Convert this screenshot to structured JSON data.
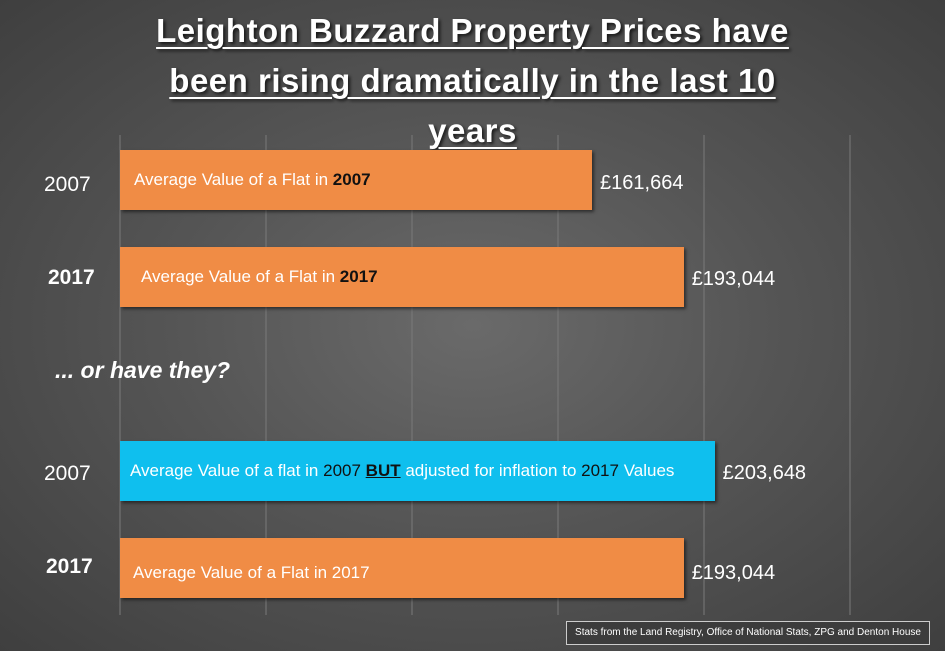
{
  "title_lines": [
    "Leighton Buzzard Property Prices have",
    "been rising dramatically in the last 10",
    "years"
  ],
  "subheading": "... or have they?",
  "source_note": "Stats from the Land Registry, Office of National Stats, ZPG and Denton House",
  "colors": {
    "orange_bar": "#f08c45",
    "blue_bar": "#0fbfee",
    "gridline": "#7a7a7a"
  },
  "chart_data": {
    "type": "bar",
    "orientation": "horizontal",
    "grid": true,
    "xlim": [
      0,
      230000
    ],
    "rows": [
      {
        "year": "2007",
        "label_parts": [
          "Average Value of a Flat in ",
          "2007"
        ],
        "value": 161664,
        "value_label": "£161,664",
        "color": "#f08c45"
      },
      {
        "year": "2017",
        "label_parts": [
          "Average Value of a Flat in ",
          "2017"
        ],
        "value": 193044,
        "value_label": "£193,044",
        "color": "#f08c45"
      },
      {
        "year": "2007",
        "label_parts": [
          "Average Value of a flat in ",
          "2007",
          " ",
          "BUT",
          " adjusted for inflation to ",
          "2017",
          " Values"
        ],
        "value": 203648,
        "value_label": "£203,648",
        "color": "#0fbfee"
      },
      {
        "year": "2017",
        "label_parts": [
          "Average Value of a Flat in 2017"
        ],
        "value": 193044,
        "value_label": "£193,044",
        "color": "#f08c45"
      }
    ]
  }
}
